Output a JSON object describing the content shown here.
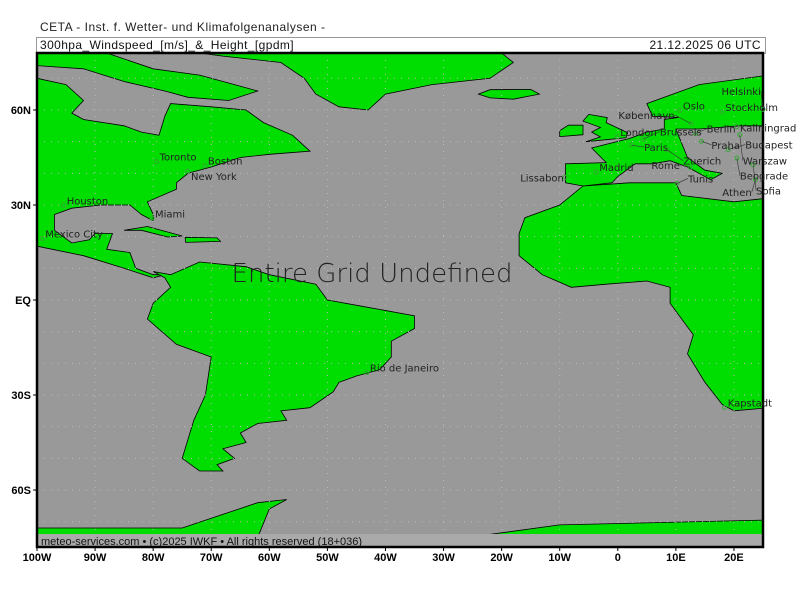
{
  "header": {
    "organization": "CETA - Inst. f. Wetter- und Klimafolgenanalysen -",
    "product": "300hpa_Windspeed_[m/s]_&_Height_[gpdm]",
    "valid_time": "21.12.2025 06 UTC"
  },
  "overlay_message": "Entire Grid Undefined",
  "footer": "meteo-services.com • (c)2025 IWKF • All rights reserved (18+036)",
  "colors": {
    "land": "#00dd00",
    "ocean": "#999999",
    "border": "#000000",
    "footer_land": "#33dd33"
  },
  "axes": {
    "lon_ticks": [
      {
        "value": -100,
        "label": "100W"
      },
      {
        "value": -90,
        "label": "90W"
      },
      {
        "value": -80,
        "label": "80W"
      },
      {
        "value": -70,
        "label": "70W"
      },
      {
        "value": -60,
        "label": "60W"
      },
      {
        "value": -50,
        "label": "50W"
      },
      {
        "value": -40,
        "label": "40W"
      },
      {
        "value": -30,
        "label": "30W"
      },
      {
        "value": -20,
        "label": "20W"
      },
      {
        "value": -10,
        "label": "10W"
      },
      {
        "value": 0,
        "label": "0"
      },
      {
        "value": 10,
        "label": "10E"
      },
      {
        "value": 20,
        "label": "20E"
      }
    ],
    "lat_ticks": [
      {
        "value": 60,
        "label": "60N"
      },
      {
        "value": 30,
        "label": "30N"
      },
      {
        "value": 0,
        "label": "EQ"
      },
      {
        "value": -30,
        "label": "30S"
      },
      {
        "value": -60,
        "label": "60S"
      }
    ]
  },
  "cities": [
    {
      "name": "Toronto",
      "lon": -79.4,
      "lat": 43.7
    },
    {
      "name": "Boston",
      "lon": -71.1,
      "lat": 42.4
    },
    {
      "name": "New York",
      "lon": -74.0,
      "lat": 40.7
    },
    {
      "name": "Houston",
      "lon": -95.4,
      "lat": 29.8
    },
    {
      "name": "Miami",
      "lon": -80.2,
      "lat": 25.8
    },
    {
      "name": "Mexico City",
      "lon": -99.1,
      "lat": 19.4
    },
    {
      "name": "Rio de Janeiro",
      "lon": -43.2,
      "lat": -22.9
    },
    {
      "name": "Kapstadt",
      "lon": 18.4,
      "lat": -33.9
    },
    {
      "name": "London",
      "lon": -0.1,
      "lat": 51.5
    },
    {
      "name": "Madrid",
      "lon": -3.7,
      "lat": 40.4
    },
    {
      "name": "Lissabon",
      "lon": -9.1,
      "lat": 38.7
    },
    {
      "name": "Paris",
      "lon": 2.3,
      "lat": 48.9
    },
    {
      "name": "Brussels",
      "lon": 4.4,
      "lat": 50.8
    },
    {
      "name": "Berlin",
      "lon": 13.4,
      "lat": 52.5
    },
    {
      "name": "Praha",
      "lon": 14.4,
      "lat": 50.1
    },
    {
      "name": "Zuerich",
      "lon": 8.5,
      "lat": 47.4
    },
    {
      "name": "Budapest",
      "lon": 19.0,
      "lat": 47.5
    },
    {
      "name": "Rome",
      "lon": 12.5,
      "lat": 41.9
    },
    {
      "name": "Tunis",
      "lon": 10.2,
      "lat": 36.8
    },
    {
      "name": "Oslo",
      "lon": 10.7,
      "lat": 59.9
    },
    {
      "name": "Stockholm",
      "lon": 18.0,
      "lat": 59.3
    },
    {
      "name": "Helsinki",
      "lon": 25.0,
      "lat": 60.2
    },
    {
      "name": "København",
      "lon": 12.6,
      "lat": 55.7
    },
    {
      "name": "Kaliningrad",
      "lon": 20.5,
      "lat": 54.7
    },
    {
      "name": "Warszaw",
      "lon": 21.0,
      "lat": 52.2
    },
    {
      "name": "Beograde",
      "lon": 20.5,
      "lat": 44.8
    },
    {
      "name": "Sofia",
      "lon": 23.3,
      "lat": 42.7
    },
    {
      "name": "Athen",
      "lon": 23.7,
      "lat": 38.0
    }
  ]
}
